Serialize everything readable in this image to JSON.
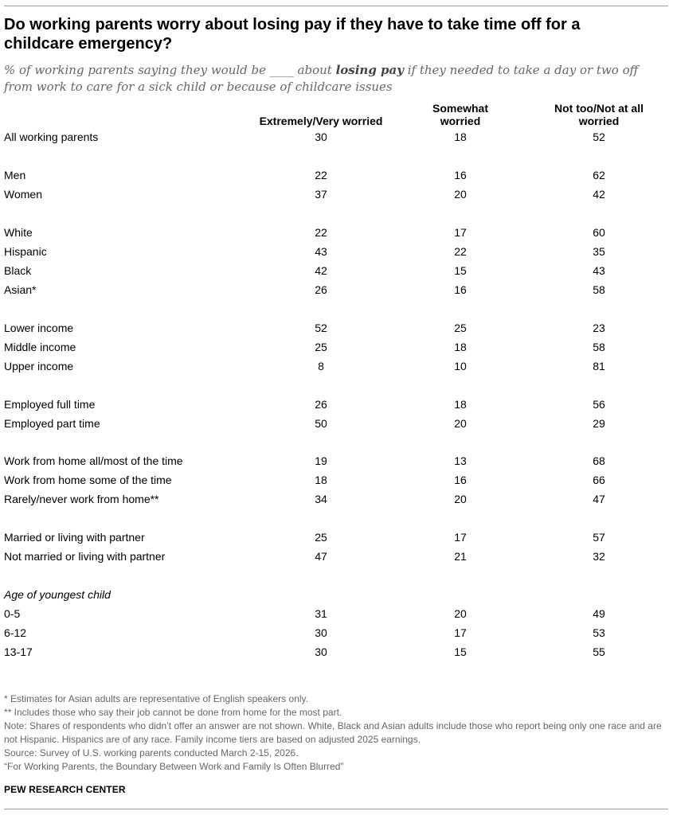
{
  "header": {
    "title": "Do working parents worry about losing pay if they have to take time off for a childcare emergency?",
    "subtitle_pre": "% of working parents saying they would be ____ about ",
    "subtitle_bold": "losing pay",
    "subtitle_post": " if they needed to take a day or two off from work to care for a sick child or because of childcare issues"
  },
  "chart_data": {
    "type": "table",
    "columns": [
      "Extremely/Very worried",
      "Somewhat worried",
      "Not too/Not at all worried"
    ],
    "rows": [
      {
        "label": "All working parents",
        "values": [
          30,
          18,
          52
        ]
      },
      {
        "label": "Men",
        "values": [
          22,
          16,
          62
        ]
      },
      {
        "label": "Women",
        "values": [
          37,
          20,
          42
        ]
      },
      {
        "label": "White",
        "values": [
          22,
          17,
          60
        ]
      },
      {
        "label": "Hispanic",
        "values": [
          43,
          22,
          35
        ]
      },
      {
        "label": "Black",
        "values": [
          42,
          15,
          43
        ]
      },
      {
        "label": "Asian*",
        "values": [
          26,
          16,
          58
        ]
      },
      {
        "label": "Lower income",
        "values": [
          52,
          25,
          23
        ]
      },
      {
        "label": "Middle income",
        "values": [
          25,
          18,
          58
        ]
      },
      {
        "label": "Upper income",
        "values": [
          8,
          10,
          81
        ]
      },
      {
        "label": "Employed full time",
        "values": [
          26,
          18,
          56
        ]
      },
      {
        "label": "Employed part time",
        "values": [
          50,
          20,
          29
        ]
      },
      {
        "label": "Work from home all/most of the time",
        "values": [
          19,
          13,
          68
        ]
      },
      {
        "label": "Work from home some of the time",
        "values": [
          18,
          16,
          66
        ]
      },
      {
        "label": "Rarely/never work from home**",
        "values": [
          34,
          20,
          47
        ]
      },
      {
        "label": "Married or living with partner",
        "values": [
          25,
          17,
          57
        ]
      },
      {
        "label": "Not married or living with partner",
        "values": [
          47,
          21,
          32
        ]
      },
      {
        "label": "Age of youngest child",
        "heading": true
      },
      {
        "label": "0-5",
        "values": [
          31,
          20,
          49
        ]
      },
      {
        "label": "6-12",
        "values": [
          30,
          17,
          53
        ]
      },
      {
        "label": "13-17",
        "values": [
          30,
          15,
          55
        ]
      }
    ]
  },
  "notes": {
    "asian": "* Estimates for Asian adults are representative of English speakers only.",
    "wfh": "** Includes those who say their job cannot be done from home for the most part.",
    "note": "Note: Shares of respondents who didn’t offer an answer are not shown. White, Black and Asian adults include those who report being only one race and are not Hispanic. Hispanics are of any race. Family income tiers are based on adjusted 2025 earnings.",
    "source": "Source: Survey of U.S. working parents conducted March 2-15, 2026.",
    "report": "“For Working Parents, the Boundary Between Work and Family Is Often Blurred”"
  },
  "brand": "PEW RESEARCH CENTER"
}
